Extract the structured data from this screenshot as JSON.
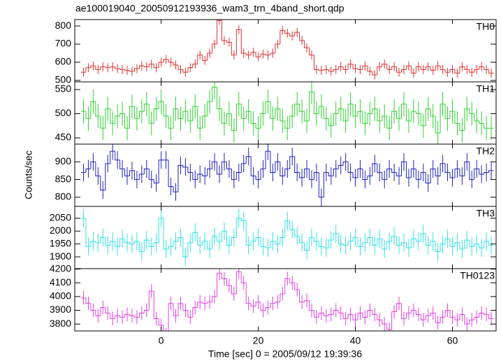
{
  "chart_data": {
    "type": "step",
    "title": "ae100019040_20050912193936_wam3_trn_4band_short.qdp",
    "xlabel": "Time [sec] 0 = 2005/09/12 19:39:36",
    "ylabel": "Counts/sec",
    "xlim": [
      -17.8,
      69
    ],
    "xticks": [
      0,
      20,
      40,
      60
    ],
    "x": [
      -16,
      -15,
      -14,
      -13,
      -12,
      -11,
      -10,
      -9,
      -8,
      -7,
      -6,
      -5,
      -4,
      -3,
      -2,
      -1,
      0,
      1,
      2,
      3,
      4,
      5,
      6,
      7,
      8,
      9,
      10,
      11,
      12,
      13,
      14,
      15,
      16,
      17,
      18,
      19,
      20,
      21,
      22,
      23,
      24,
      25,
      26,
      27,
      28,
      29,
      30,
      31,
      32,
      33,
      34,
      35,
      36,
      37,
      38,
      39,
      40,
      41,
      42,
      43,
      44,
      45,
      46,
      47,
      48,
      49,
      50,
      51,
      52,
      53,
      54,
      55,
      56,
      57,
      58,
      59,
      60,
      61,
      62,
      63,
      64,
      65,
      66,
      67,
      68
    ],
    "panels": [
      {
        "name": "TH0",
        "color": "#e03030",
        "ylim": [
          492,
          835
        ],
        "yticks": [
          500,
          600,
          700,
          800
        ],
        "error": 25,
        "values": [
          545,
          570,
          580,
          560,
          575,
          570,
          575,
          565,
          560,
          555,
          550,
          565,
          580,
          575,
          590,
          570,
          600,
          615,
          600,
          585,
          560,
          545,
          570,
          590,
          640,
          610,
          650,
          700,
          830,
          720,
          710,
          640,
          780,
          650,
          640,
          655,
          630,
          645,
          640,
          650,
          700,
          775,
          760,
          745,
          765,
          720,
          680,
          640,
          560,
          555,
          560,
          550,
          560,
          575,
          560,
          590,
          565,
          560,
          580,
          550,
          530,
          575,
          590,
          560,
          575,
          545,
          560,
          580,
          540,
          575,
          560,
          575,
          555,
          580,
          560,
          545,
          560,
          540,
          575,
          560,
          545,
          560,
          575,
          560,
          540
        ]
      },
      {
        "name": "TH1",
        "color": "#30d030",
        "ylim": [
          437,
          566
        ],
        "yticks": [
          450,
          500,
          550
        ],
        "error": 25,
        "values": [
          505,
          490,
          525,
          495,
          470,
          510,
          480,
          495,
          500,
          470,
          515,
          490,
          505,
          520,
          480,
          510,
          525,
          495,
          470,
          510,
          490,
          505,
          485,
          515,
          470,
          495,
          525,
          555,
          510,
          480,
          500,
          465,
          520,
          490,
          505,
          480,
          470,
          500,
          525,
          490,
          510,
          485,
          470,
          495,
          520,
          505,
          485,
          545,
          500,
          515,
          490,
          475,
          500,
          510,
          485,
          520,
          495,
          505,
          480,
          500,
          510,
          485,
          495,
          470,
          505,
          490,
          520,
          485,
          505,
          500,
          475,
          510,
          495,
          460,
          520,
          490,
          505,
          480,
          465,
          510,
          500,
          485,
          480,
          470,
          470
        ]
      },
      {
        "name": "TH2",
        "color": "#2020c0",
        "ylim": [
          774,
          950
        ],
        "yticks": [
          800,
          850,
          900
        ],
        "error": 25,
        "values": [
          870,
          880,
          900,
          860,
          820,
          895,
          930,
          905,
          880,
          860,
          875,
          850,
          865,
          880,
          850,
          840,
          905,
          905,
          830,
          815,
          890,
          885,
          870,
          850,
          865,
          860,
          880,
          900,
          865,
          900,
          880,
          850,
          870,
          895,
          915,
          860,
          850,
          880,
          930,
          870,
          900,
          860,
          880,
          915,
          870,
          855,
          880,
          850,
          870,
          800,
          870,
          860,
          880,
          890,
          900,
          870,
          855,
          880,
          850,
          860,
          895,
          870,
          850,
          880,
          870,
          860,
          900,
          855,
          880,
          850,
          870,
          840,
          880,
          860,
          895,
          870,
          855,
          880,
          860,
          900,
          850,
          880,
          865,
          870,
          875
        ]
      },
      {
        "name": "TH3",
        "color": "#30e0e0",
        "ylim": [
          1854,
          2096
        ],
        "yticks": [
          1900,
          1950,
          2000,
          2050
        ],
        "error": 35,
        "values": [
          2050,
          1940,
          1960,
          1955,
          1975,
          1945,
          1960,
          1940,
          1970,
          1955,
          1950,
          1960,
          1920,
          1965,
          1940,
          1955,
          2050,
          1930,
          1940,
          1960,
          1975,
          1900,
          1955,
          1995,
          1945,
          1960,
          1930,
          1980,
          1960,
          2000,
          1945,
          1975,
          2050,
          2040,
          1945,
          1960,
          1975,
          1940,
          1935,
          1960,
          1950,
          1975,
          2040,
          2005,
          1980,
          1955,
          1925,
          1975,
          1960,
          1940,
          1935,
          1965,
          1990,
          1950,
          1945,
          1960,
          1975,
          1940,
          1955,
          1975,
          1945,
          1970,
          1930,
          1960,
          1980,
          1945,
          1955,
          1935,
          1970,
          1960,
          1990,
          1945,
          1960,
          1920,
          1950,
          1970,
          1940,
          1955,
          1930,
          1965,
          1940,
          1950,
          1935,
          1960,
          1945
        ]
      },
      {
        "name": "TH0123",
        "color": "#e040e0",
        "ylim": [
          3750,
          4203
        ],
        "yticks": [
          3800,
          3900,
          4000,
          4100,
          4200
        ],
        "error": 50,
        "values": [
          3990,
          3950,
          3900,
          3860,
          3920,
          3880,
          3840,
          3860,
          3850,
          3870,
          3860,
          3850,
          3880,
          3900,
          4040,
          3840,
          3790,
          3720,
          3950,
          3860,
          3950,
          3900,
          3850,
          3920,
          3960,
          3950,
          3960,
          4000,
          4170,
          4130,
          4080,
          4020,
          4180,
          4100,
          3950,
          3930,
          3960,
          3900,
          3920,
          3950,
          3960,
          4020,
          4130,
          4100,
          4050,
          3960,
          3970,
          3900,
          3850,
          3880,
          3860,
          3870,
          3900,
          3880,
          3840,
          3870,
          3830,
          3880,
          3850,
          3900,
          3870,
          3830,
          3800,
          3760,
          3890,
          3950,
          3840,
          3880,
          3900,
          3870,
          3830,
          3860,
          3880,
          3810,
          3850,
          3900,
          3850,
          3830,
          3870,
          3800,
          3830,
          3850,
          3880,
          3870,
          3840
        ]
      }
    ]
  }
}
